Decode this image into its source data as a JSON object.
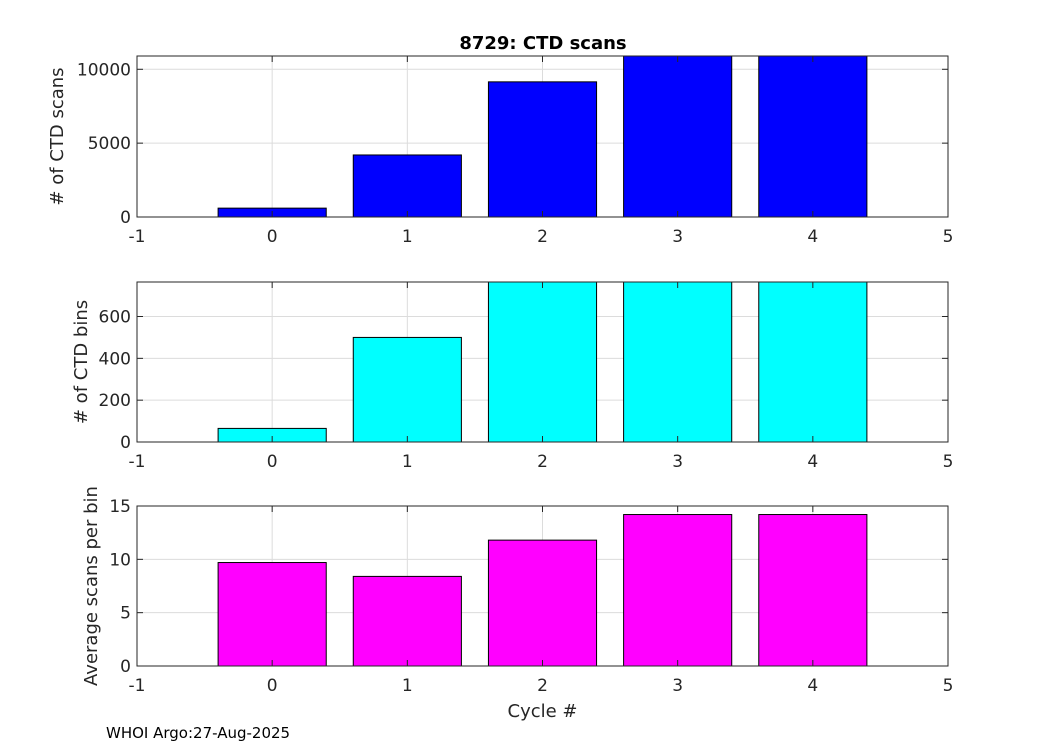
{
  "title": "8729: CTD scans",
  "footer": "WHOI Argo:27-Aug-2025",
  "chart_data": [
    {
      "type": "bar",
      "title": "8729: CTD scans",
      "ylabel": "# of CTD scans",
      "xlabel": "",
      "x": [
        0,
        1,
        2,
        3,
        4
      ],
      "values": [
        600,
        4200,
        9150,
        10900,
        10900
      ],
      "color": "#0000ff",
      "xlim": [
        -1,
        5
      ],
      "ylim": [
        0,
        10900
      ],
      "xticks": [
        -1,
        0,
        1,
        2,
        3,
        4,
        5
      ],
      "yticks": [
        0,
        5000,
        10000
      ],
      "grid": true
    },
    {
      "type": "bar",
      "title": "",
      "ylabel": "# of CTD bins",
      "xlabel": "",
      "x": [
        0,
        1,
        2,
        3,
        4
      ],
      "values": [
        65,
        500,
        765,
        765,
        765
      ],
      "color": "#00ffff",
      "xlim": [
        -1,
        5
      ],
      "ylim": [
        0,
        765
      ],
      "xticks": [
        -1,
        0,
        1,
        2,
        3,
        4,
        5
      ],
      "yticks": [
        0,
        200,
        400,
        600
      ],
      "grid": true
    },
    {
      "type": "bar",
      "title": "",
      "ylabel": "Average scans per bin",
      "xlabel": "Cycle #",
      "x": [
        0,
        1,
        2,
        3,
        4
      ],
      "values": [
        9.7,
        8.4,
        11.8,
        14.2,
        14.2
      ],
      "color": "#ff00ff",
      "xlim": [
        -1,
        5
      ],
      "ylim": [
        0,
        15
      ],
      "xticks": [
        -1,
        0,
        1,
        2,
        3,
        4,
        5
      ],
      "yticks": [
        0,
        5,
        10,
        15
      ],
      "grid": true
    }
  ]
}
